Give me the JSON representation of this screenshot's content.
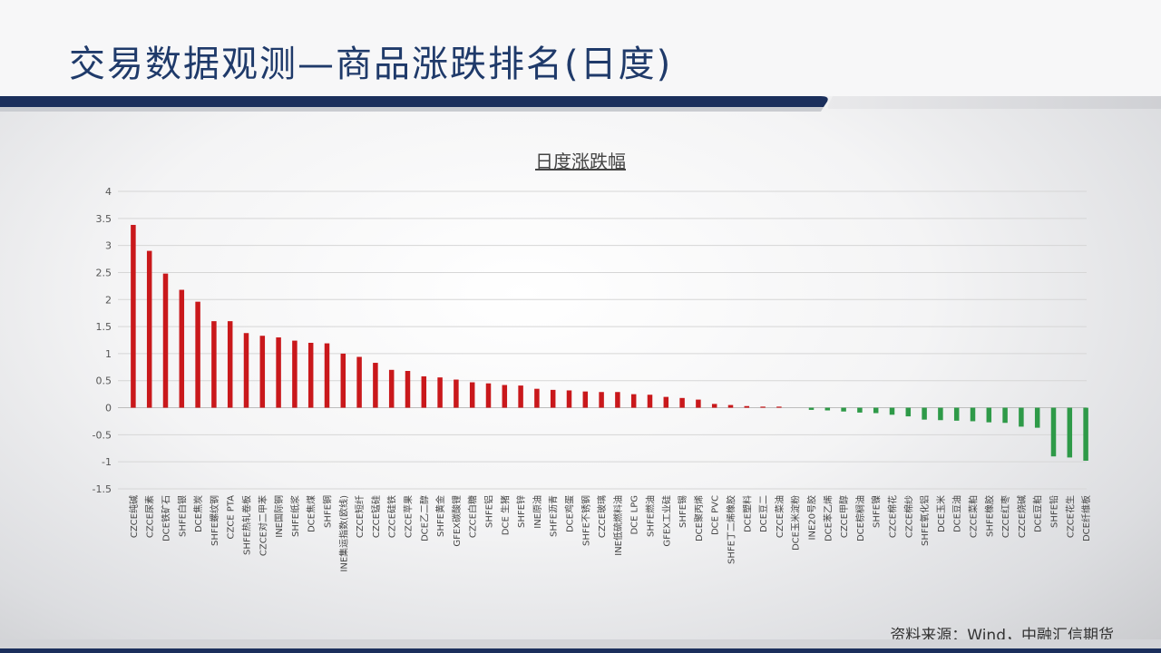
{
  "header": {
    "title": "交易数据观测—商品涨跌排名(日度)"
  },
  "footer": {
    "source": "资料来源：Wind，中融汇信期货"
  },
  "colors": {
    "title": "#1f3a6a",
    "up": "#c9181b",
    "down": "#2e9a48",
    "navy": "#1b2f5c"
  },
  "chart_data": {
    "type": "bar",
    "title": "日度涨跌幅",
    "ylim": [
      -1.5,
      4
    ],
    "yticks": [
      "4",
      "3.5",
      "3",
      "2.5",
      "2",
      "1.5",
      "1",
      "0.5",
      "0",
      "-0.5",
      "-1",
      "-1.5"
    ],
    "grid": true,
    "categories": [
      "CZCE纯碱",
      "CZCE尿素",
      "DCE铁矿石",
      "SHFE白银",
      "DCE焦炭",
      "SHFE螺纹钢",
      "CZCE PTA",
      "SHFE热轧卷板",
      "CZCE对二甲苯",
      "INE国际铜",
      "SHFE纸浆",
      "DCE焦煤",
      "SHFE铜",
      "INE集运指数(欧线)",
      "CZCE短纤",
      "CZCE锰硅",
      "CZCE硅铁",
      "CZCE苹果",
      "DCE乙二醇",
      "SHFE黄金",
      "GFEX碳酸锂",
      "CZCE白糖",
      "SHFE铝",
      "DCE 生猪",
      "SHFE锌",
      "INE原油",
      "SHFE沥青",
      "DCE鸡蛋",
      "SHFE不锈钢",
      "CZCE玻璃",
      "INE低硫燃料油",
      "DCE LPG",
      "SHFE燃油",
      "GFEX工业硅",
      "SHFE锡",
      "DCE聚丙烯",
      "DCE PVC",
      "SHFE丁二烯橡胶",
      "DCE塑料",
      "DCE豆二",
      "CZCE菜油",
      "DCE玉米淀粉",
      "INE20号胶",
      "DCE苯乙烯",
      "CZCE甲醇",
      "DCE棕榈油",
      "SHFE镍",
      "CZCE棉花",
      "CZCE棉纱",
      "SHFE氧化铝",
      "DCE玉米",
      "DCE豆油",
      "CZCE菜粕",
      "SHFE橡胶",
      "CZCE红枣",
      "CZCE烧碱",
      "DCE豆粕",
      "SHFE铅",
      "CZCE花生",
      "DCE纤维板"
    ],
    "values": [
      3.38,
      2.9,
      2.48,
      2.18,
      1.96,
      1.6,
      1.6,
      1.38,
      1.33,
      1.3,
      1.24,
      1.2,
      1.19,
      1.0,
      0.94,
      0.83,
      0.7,
      0.68,
      0.58,
      0.56,
      0.52,
      0.47,
      0.45,
      0.42,
      0.41,
      0.35,
      0.33,
      0.32,
      0.3,
      0.29,
      0.29,
      0.25,
      0.24,
      0.2,
      0.18,
      0.15,
      0.07,
      0.05,
      0.03,
      0.02,
      0.02,
      0.0,
      -0.04,
      -0.05,
      -0.07,
      -0.09,
      -0.1,
      -0.13,
      -0.16,
      -0.22,
      -0.23,
      -0.24,
      -0.25,
      -0.27,
      -0.28,
      -0.35,
      -0.37,
      -0.9,
      -0.92,
      -0.98
    ]
  }
}
